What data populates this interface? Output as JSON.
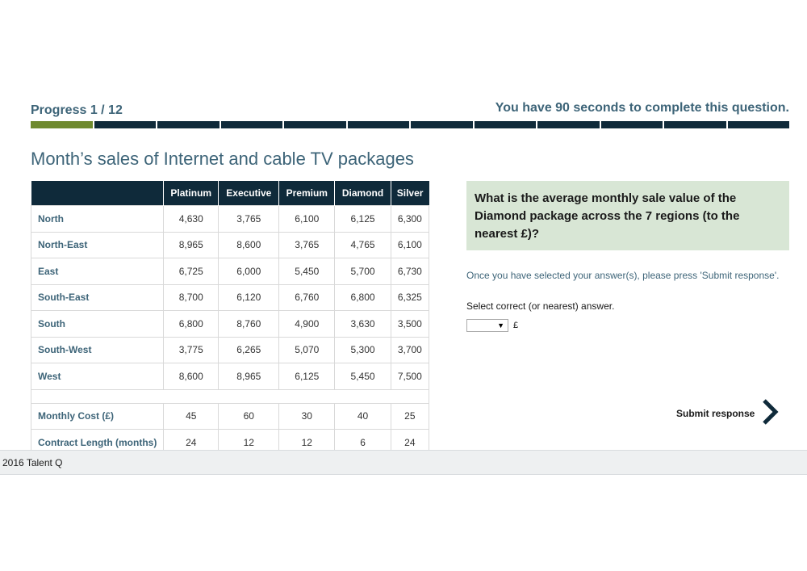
{
  "header": {
    "progress_label": "Progress 1 / 12",
    "progress_current": 1,
    "progress_total": 12,
    "timer_text": "You have 90 seconds to complete this question."
  },
  "colors": {
    "accent": "#3d6478",
    "progress_done": "#6f8a2f",
    "header_dark": "#0f2a3a",
    "question_bg": "#d8e6d5"
  },
  "table": {
    "title": "Month’s sales of Internet and cable TV packages",
    "columns": [
      "Platinum",
      "Executive",
      "Premium",
      "Diamond",
      "Silver"
    ],
    "rows": [
      {
        "label": "North",
        "values": [
          "4,630",
          "3,765",
          "6,100",
          "6,125",
          "6,300"
        ]
      },
      {
        "label": "North-East",
        "values": [
          "8,965",
          "8,600",
          "3,765",
          "4,765",
          "6,100"
        ]
      },
      {
        "label": "East",
        "values": [
          "6,725",
          "6,000",
          "5,450",
          "5,700",
          "6,730"
        ]
      },
      {
        "label": "South-East",
        "values": [
          "8,700",
          "6,120",
          "6,760",
          "6,800",
          "6,325"
        ]
      },
      {
        "label": "South",
        "values": [
          "6,800",
          "8,760",
          "4,900",
          "3,630",
          "3,500"
        ]
      },
      {
        "label": "South-West",
        "values": [
          "3,775",
          "6,265",
          "5,070",
          "5,300",
          "3,700"
        ]
      },
      {
        "label": "West",
        "values": [
          "8,600",
          "8,965",
          "6,125",
          "5,450",
          "7,500"
        ]
      }
    ],
    "extra_rows": [
      {
        "label": "Monthly Cost (£)",
        "values": [
          "45",
          "60",
          "30",
          "40",
          "25"
        ]
      },
      {
        "label": "Contract Length (months)",
        "values": [
          "24",
          "12",
          "12",
          "6",
          "24"
        ]
      }
    ]
  },
  "question": {
    "text": "What is the average monthly sale value of the Diamond package across the 7 regions (to the nearest £)?",
    "instruction": "Once you have selected your answer(s), please press 'Submit response'.",
    "select_label": "Select correct (or nearest) answer.",
    "select_value": "▼",
    "currency": "£"
  },
  "submit": {
    "label": "Submit response",
    "icon": "chevron-right-icon"
  },
  "footer": {
    "text": "2016 Talent Q"
  }
}
